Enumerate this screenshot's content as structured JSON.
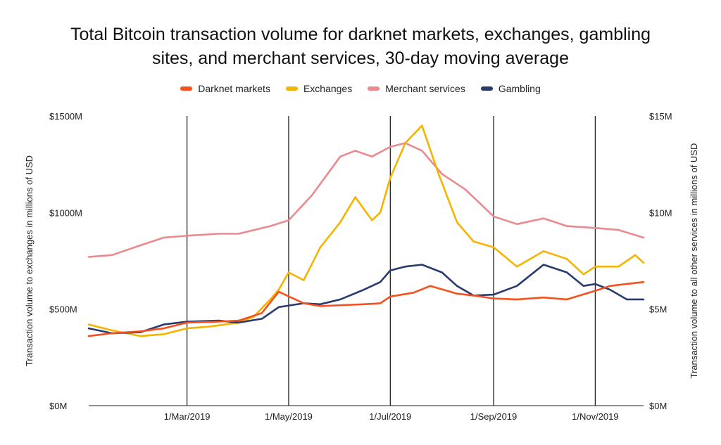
{
  "chart_data": {
    "type": "line",
    "title": "Total Bitcoin transaction volume for darknet markets, exchanges, gambling sites, and merchant services, 30-day moving average",
    "title_lines": [
      "Total Bitcoin transaction volume for darknet markets, exchanges, gambling",
      "sites, and merchant services, 30-day moving average"
    ],
    "y_left_label": "Transaction  volume to exchanges in millions of USD",
    "y_right_label": "Transaction volume to all other services in millions of USD",
    "y_left_ticks": [
      "$0M",
      "$500M",
      "$1000M",
      "$1500M"
    ],
    "y_right_ticks": [
      "$0M",
      "$5M",
      "$10M",
      "$15M"
    ],
    "y_left_range": [
      0,
      1500
    ],
    "y_right_range": [
      0,
      15
    ],
    "x_range": [
      "2019-01-01",
      "2019-11-30"
    ],
    "x_ticks": [
      {
        "date": "2019-03-01",
        "label": "1/Mar/2019"
      },
      {
        "date": "2019-05-01",
        "label": "1/May/2019"
      },
      {
        "date": "2019-07-01",
        "label": "1/Jul/2019"
      },
      {
        "date": "2019-09-01",
        "label": "1/Sep/2019"
      },
      {
        "date": "2019-11-01",
        "label": "1/Nov/2019"
      }
    ],
    "gridlines": "vertical at x ticks",
    "legend_position": "top",
    "series": [
      {
        "name": "Darknet markets",
        "axis": "right",
        "color": "#f4511e",
        "points": [
          [
            "2019-01-01",
            3.6
          ],
          [
            "2019-01-15",
            3.75
          ],
          [
            "2019-02-01",
            3.85
          ],
          [
            "2019-02-15",
            4.0
          ],
          [
            "2019-03-01",
            4.3
          ],
          [
            "2019-03-20",
            4.35
          ],
          [
            "2019-04-01",
            4.4
          ],
          [
            "2019-04-15",
            4.8
          ],
          [
            "2019-04-25",
            5.9
          ],
          [
            "2019-05-10",
            5.3
          ],
          [
            "2019-05-20",
            5.15
          ],
          [
            "2019-06-01",
            5.2
          ],
          [
            "2019-06-15",
            5.25
          ],
          [
            "2019-06-25",
            5.3
          ],
          [
            "2019-07-01",
            5.65
          ],
          [
            "2019-07-15",
            5.85
          ],
          [
            "2019-07-25",
            6.2
          ],
          [
            "2019-08-10",
            5.8
          ],
          [
            "2019-08-20",
            5.7
          ],
          [
            "2019-09-01",
            5.55
          ],
          [
            "2019-09-15",
            5.5
          ],
          [
            "2019-10-01",
            5.6
          ],
          [
            "2019-10-15",
            5.5
          ],
          [
            "2019-11-01",
            5.95
          ],
          [
            "2019-11-10",
            6.2
          ],
          [
            "2019-11-30",
            6.4
          ]
        ]
      },
      {
        "name": "Exchanges",
        "axis": "left",
        "color": "#f6b300",
        "points": [
          [
            "2019-01-01",
            420
          ],
          [
            "2019-01-15",
            390
          ],
          [
            "2019-02-01",
            360
          ],
          [
            "2019-02-15",
            370
          ],
          [
            "2019-03-01",
            400
          ],
          [
            "2019-03-15",
            410
          ],
          [
            "2019-04-01",
            430
          ],
          [
            "2019-04-10",
            460
          ],
          [
            "2019-04-20",
            550
          ],
          [
            "2019-04-25",
            600
          ],
          [
            "2019-05-01",
            690
          ],
          [
            "2019-05-10",
            650
          ],
          [
            "2019-05-20",
            820
          ],
          [
            "2019-06-01",
            950
          ],
          [
            "2019-06-10",
            1080
          ],
          [
            "2019-06-20",
            960
          ],
          [
            "2019-06-25",
            1000
          ],
          [
            "2019-07-01",
            1180
          ],
          [
            "2019-07-10",
            1360
          ],
          [
            "2019-07-20",
            1450
          ],
          [
            "2019-07-30",
            1200
          ],
          [
            "2019-08-10",
            950
          ],
          [
            "2019-08-20",
            850
          ],
          [
            "2019-09-01",
            820
          ],
          [
            "2019-09-15",
            720
          ],
          [
            "2019-10-01",
            800
          ],
          [
            "2019-10-15",
            760
          ],
          [
            "2019-10-25",
            680
          ],
          [
            "2019-11-01",
            720
          ],
          [
            "2019-11-15",
            720
          ],
          [
            "2019-11-25",
            780
          ],
          [
            "2019-11-30",
            740
          ]
        ]
      },
      {
        "name": "Merchant services",
        "axis": "right",
        "color": "#ea8a8f",
        "points": [
          [
            "2019-01-01",
            7.7
          ],
          [
            "2019-01-15",
            7.8
          ],
          [
            "2019-02-01",
            8.3
          ],
          [
            "2019-02-15",
            8.7
          ],
          [
            "2019-03-01",
            8.8
          ],
          [
            "2019-03-20",
            8.9
          ],
          [
            "2019-04-01",
            8.9
          ],
          [
            "2019-04-20",
            9.3
          ],
          [
            "2019-05-01",
            9.6
          ],
          [
            "2019-05-15",
            10.9
          ],
          [
            "2019-06-01",
            12.9
          ],
          [
            "2019-06-10",
            13.2
          ],
          [
            "2019-06-20",
            12.9
          ],
          [
            "2019-07-01",
            13.4
          ],
          [
            "2019-07-10",
            13.6
          ],
          [
            "2019-07-20",
            13.2
          ],
          [
            "2019-08-01",
            12.0
          ],
          [
            "2019-08-15",
            11.2
          ],
          [
            "2019-09-01",
            9.8
          ],
          [
            "2019-09-15",
            9.4
          ],
          [
            "2019-10-01",
            9.7
          ],
          [
            "2019-10-15",
            9.3
          ],
          [
            "2019-11-01",
            9.2
          ],
          [
            "2019-11-15",
            9.1
          ],
          [
            "2019-11-30",
            8.7
          ]
        ]
      },
      {
        "name": "Gambling",
        "axis": "right",
        "color": "#283a6e",
        "points": [
          [
            "2019-01-01",
            4.0
          ],
          [
            "2019-01-15",
            3.75
          ],
          [
            "2019-02-01",
            3.8
          ],
          [
            "2019-02-15",
            4.2
          ],
          [
            "2019-03-01",
            4.35
          ],
          [
            "2019-03-20",
            4.4
          ],
          [
            "2019-04-01",
            4.3
          ],
          [
            "2019-04-15",
            4.5
          ],
          [
            "2019-04-25",
            5.1
          ],
          [
            "2019-05-10",
            5.3
          ],
          [
            "2019-05-20",
            5.25
          ],
          [
            "2019-06-01",
            5.5
          ],
          [
            "2019-06-15",
            6.0
          ],
          [
            "2019-06-25",
            6.4
          ],
          [
            "2019-07-01",
            7.0
          ],
          [
            "2019-07-10",
            7.2
          ],
          [
            "2019-07-20",
            7.3
          ],
          [
            "2019-08-01",
            6.9
          ],
          [
            "2019-08-10",
            6.2
          ],
          [
            "2019-08-20",
            5.7
          ],
          [
            "2019-09-01",
            5.75
          ],
          [
            "2019-09-15",
            6.2
          ],
          [
            "2019-10-01",
            7.3
          ],
          [
            "2019-10-15",
            6.9
          ],
          [
            "2019-10-25",
            6.2
          ],
          [
            "2019-11-01",
            6.3
          ],
          [
            "2019-11-10",
            6.0
          ],
          [
            "2019-11-20",
            5.5
          ],
          [
            "2019-11-30",
            5.5
          ]
        ]
      }
    ]
  }
}
